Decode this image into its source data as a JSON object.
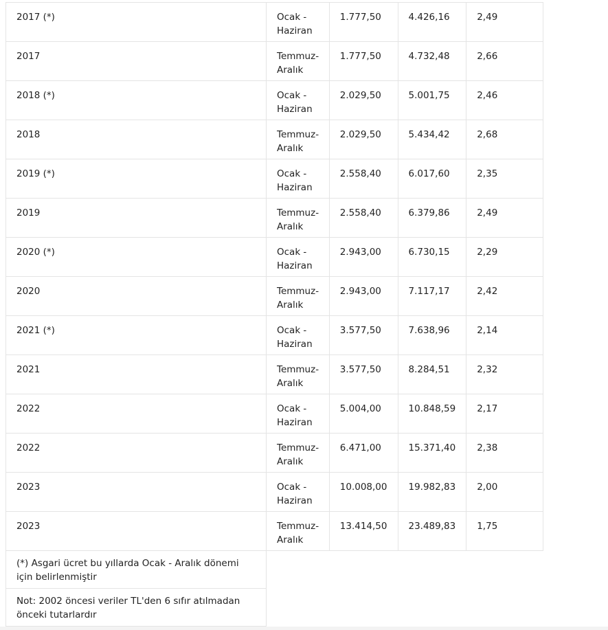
{
  "rows": [
    [
      "2017 (*)",
      "Ocak - Haziran",
      "1.777,50",
      "4.426,16",
      "2,49"
    ],
    [
      "2017",
      "Temmuz-Aralık",
      "1.777,50",
      "4.732,48",
      "2,66"
    ],
    [
      "2018 (*)",
      "Ocak - Haziran",
      "2.029,50",
      "5.001,75",
      "2,46"
    ],
    [
      "2018",
      "Temmuz-Aralık",
      "2.029,50",
      "5.434,42",
      "2,68"
    ],
    [
      "2019 (*)",
      "Ocak - Haziran",
      "2.558,40",
      "6.017,60",
      "2,35"
    ],
    [
      "2019",
      "Temmuz-Aralık",
      "2.558,40",
      "6.379,86",
      "2,49"
    ],
    [
      "2020 (*)",
      "Ocak - Haziran",
      "2.943,00",
      "6.730,15",
      "2,29"
    ],
    [
      "2020",
      "Temmuz-Aralık",
      "2.943,00",
      "7.117,17",
      "2,42"
    ],
    [
      "2021 (*)",
      "Ocak - Haziran",
      "3.577,50",
      "7.638,96",
      "2,14"
    ],
    [
      "2021",
      "Temmuz-Aralık",
      "3.577,50",
      "8.284,51",
      "2,32"
    ],
    [
      "2022",
      "Ocak - Haziran",
      "5.004,00",
      "10.848,59",
      "2,17"
    ],
    [
      "2022",
      "Temmuz-Aralık",
      "6.471,00",
      "15.371,40",
      "2,38"
    ],
    [
      "2023",
      "Ocak - Haziran",
      "10.008,00",
      "19.982,83",
      "2,00"
    ],
    [
      "2023",
      "Temmuz-Aralık",
      "13.414,50",
      "23.489,83",
      "1,75"
    ]
  ],
  "notes": [
    "(*) Asgari ücret bu yıllarda Ocak - Aralık dönemi için belirlenmiştir",
    "Not: 2002 öncesi veriler TL'den 6 sıfır atılmadan önceki tutarlardır"
  ]
}
